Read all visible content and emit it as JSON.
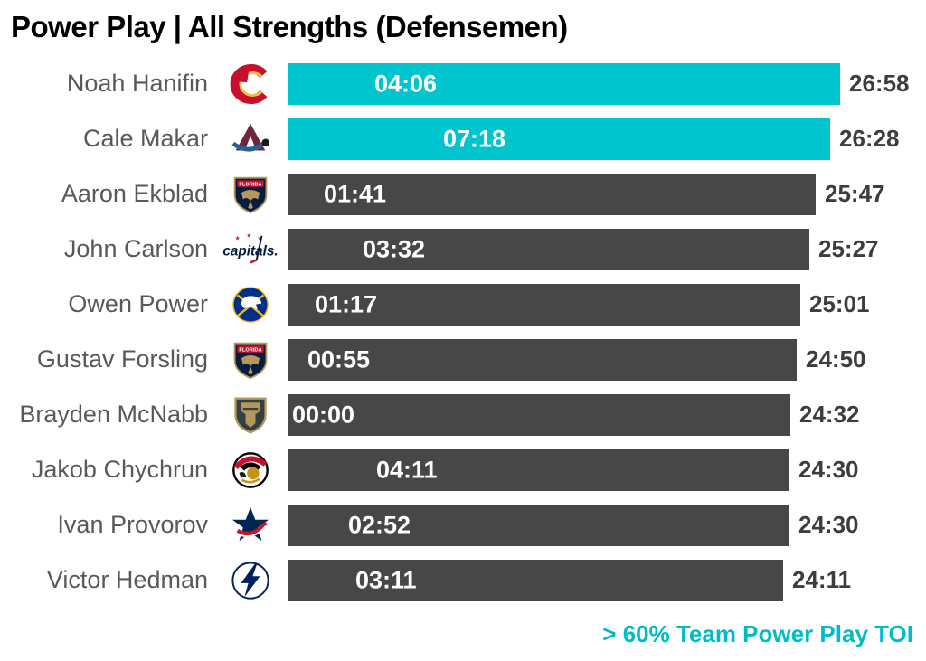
{
  "page": {
    "background": "#ffffff"
  },
  "colors": {
    "highlight_bar": "#00C4CE",
    "default_bar": "#474747",
    "player_name_text": "#595959",
    "value_text": "#3d3d3d",
    "title_text": "#000000",
    "annotation_text": "#00BCC8"
  },
  "chart_data": {
    "type": "bar",
    "orientation": "horizontal",
    "title": "Power Play | All Strengths (Defensemen)",
    "annotation": "> 60% Team Power Play TOI",
    "value_format": "mm:ss",
    "x_axis": {
      "visible": false,
      "min_minutes": 0,
      "max_minutes": 27.5,
      "gridlines": false
    },
    "legend": {
      "position": "bottom-right",
      "highlight_color": "#00C4CE",
      "highlight_meaning": "> 60% Team Power Play TOI",
      "default_color": "#474747"
    },
    "bar_inner_label": "power_play_toi",
    "bar_end_label": "total_toi",
    "rows": [
      {
        "player": "Noah Hanifin",
        "team": "Calgary Flames",
        "logo": "calgary-flames-logo",
        "power_play_toi": "04:06",
        "pp_seconds": 246,
        "total_toi": "26:58",
        "total_seconds": 1618,
        "highlight": true
      },
      {
        "player": "Cale Makar",
        "team": "Colorado Avalanche",
        "logo": "colorado-avalanche-logo",
        "power_play_toi": "07:18",
        "pp_seconds": 438,
        "total_toi": "26:28",
        "total_seconds": 1588,
        "highlight": true
      },
      {
        "player": "Aaron Ekblad",
        "team": "Florida Panthers",
        "logo": "florida-panthers-logo",
        "power_play_toi": "01:41",
        "pp_seconds": 101,
        "total_toi": "25:47",
        "total_seconds": 1547,
        "highlight": false
      },
      {
        "player": "John Carlson",
        "team": "Washington Capitals",
        "logo": "washington-capitals-logo",
        "power_play_toi": "03:32",
        "pp_seconds": 212,
        "total_toi": "25:27",
        "total_seconds": 1527,
        "highlight": false
      },
      {
        "player": "Owen Power",
        "team": "Buffalo Sabres",
        "logo": "buffalo-sabres-logo",
        "power_play_toi": "01:17",
        "pp_seconds": 77,
        "total_toi": "25:01",
        "total_seconds": 1501,
        "highlight": false
      },
      {
        "player": "Gustav Forsling",
        "team": "Florida Panthers",
        "logo": "florida-panthers-logo",
        "power_play_toi": "00:55",
        "pp_seconds": 55,
        "total_toi": "24:50",
        "total_seconds": 1490,
        "highlight": false
      },
      {
        "player": "Brayden McNabb",
        "team": "Vegas Golden Knights",
        "logo": "vegas-golden-knights-logo",
        "power_play_toi": "00:00",
        "pp_seconds": 0,
        "total_toi": "24:32",
        "total_seconds": 1472,
        "highlight": false
      },
      {
        "player": "Jakob Chychrun",
        "team": "Ottawa Senators",
        "logo": "ottawa-senators-logo",
        "power_play_toi": "04:11",
        "pp_seconds": 251,
        "total_toi": "24:30",
        "total_seconds": 1470,
        "highlight": false
      },
      {
        "player": "Ivan Provorov",
        "team": "Columbus Blue Jackets",
        "logo": "columbus-blue-jackets-logo",
        "power_play_toi": "02:52",
        "pp_seconds": 172,
        "total_toi": "24:30",
        "total_seconds": 1470,
        "highlight": false
      },
      {
        "player": "Victor Hedman",
        "team": "Tampa Bay Lightning",
        "logo": "tampa-bay-lightning-logo",
        "power_play_toi": "03:11",
        "pp_seconds": 191,
        "total_toi": "24:11",
        "total_seconds": 1451,
        "highlight": false
      }
    ]
  }
}
